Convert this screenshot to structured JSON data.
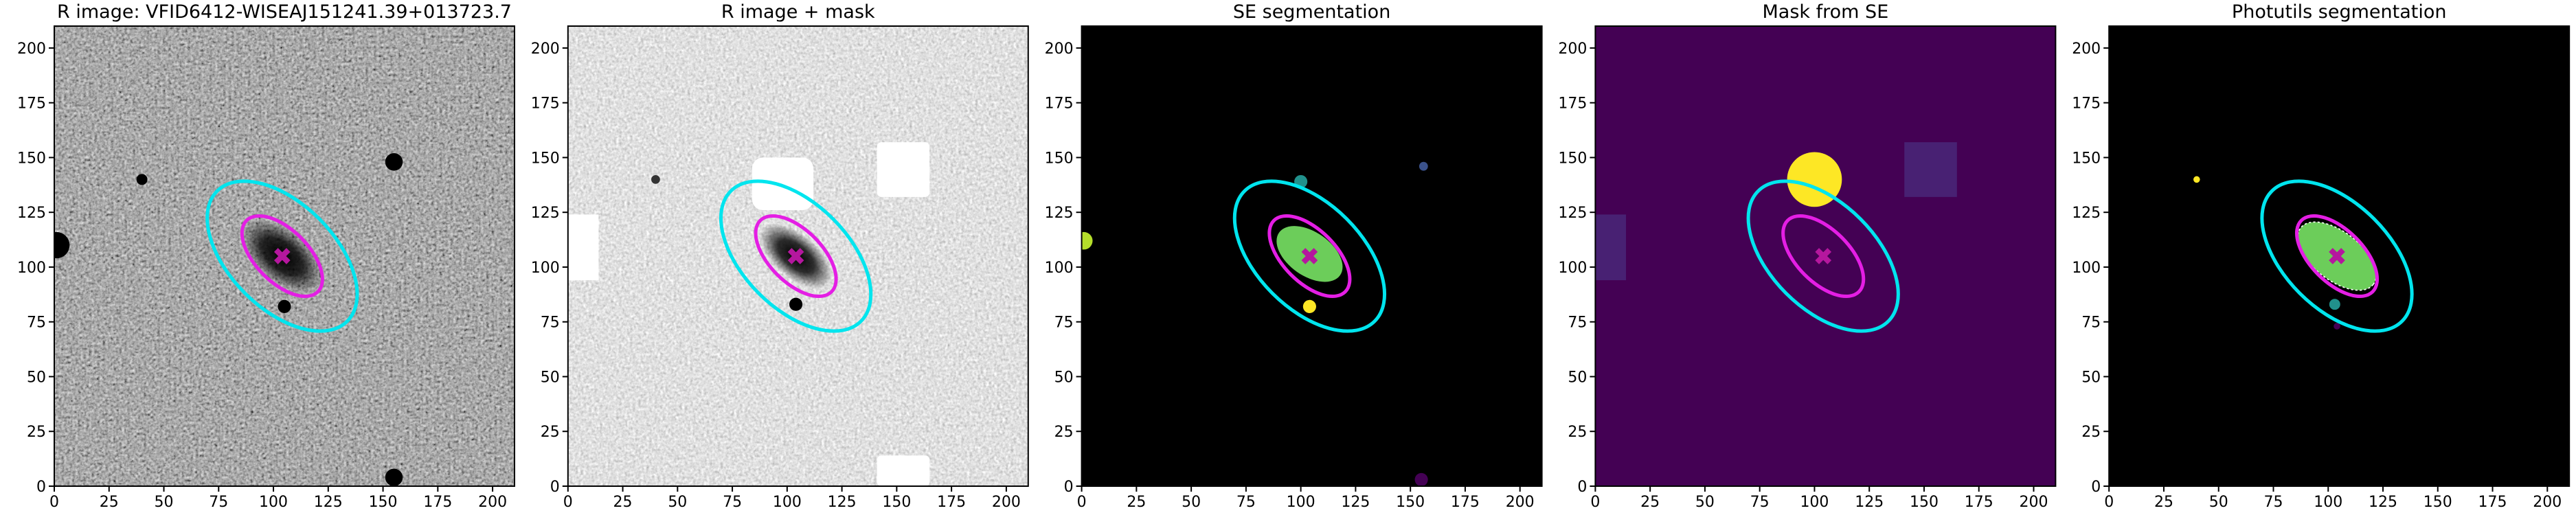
{
  "chart_data": [
    {
      "type": "image",
      "title": "R image: VFID6412-WISEAJ151241.39+013723.7",
      "xlim": [
        0,
        210
      ],
      "ylim": [
        0,
        210
      ],
      "xticks": [
        0,
        25,
        50,
        75,
        100,
        125,
        150,
        175,
        200
      ],
      "yticks": [
        0,
        25,
        50,
        75,
        100,
        125,
        150,
        175,
        200
      ],
      "ellipses": [
        {
          "color": "#00e5ee",
          "x": 104,
          "y": 105,
          "width": 84,
          "height": 48,
          "angle": -45
        },
        {
          "color": "#e41ee4",
          "x": 104,
          "y": 105,
          "width": 46,
          "height": 24,
          "angle": -45
        }
      ],
      "marker": {
        "color": "#b5179e",
        "x": 104,
        "y": 105
      }
    },
    {
      "type": "image",
      "title": "R image + mask",
      "xlim": [
        0,
        210
      ],
      "ylim": [
        0,
        210
      ],
      "xticks": [
        0,
        25,
        50,
        75,
        100,
        125,
        150,
        175,
        200
      ],
      "yticks": [
        0,
        25,
        50,
        75,
        100,
        125,
        150,
        175,
        200
      ],
      "ellipses": [
        {
          "color": "#00e5ee",
          "x": 104,
          "y": 105,
          "width": 84,
          "height": 48,
          "angle": -45
        },
        {
          "color": "#e41ee4",
          "x": 104,
          "y": 105,
          "width": 46,
          "height": 24,
          "angle": -45
        }
      ],
      "marker": {
        "color": "#b5179e",
        "x": 104,
        "y": 105
      }
    },
    {
      "type": "image",
      "title": "SE segmentation",
      "xlim": [
        0,
        210
      ],
      "ylim": [
        0,
        210
      ],
      "xticks": [
        0,
        25,
        50,
        75,
        100,
        125,
        150,
        175,
        200
      ],
      "yticks": [
        0,
        25,
        50,
        75,
        100,
        125,
        150,
        175,
        200
      ],
      "ellipses": [
        {
          "color": "#00e5ee",
          "x": 104,
          "y": 105,
          "width": 84,
          "height": 48,
          "angle": -45
        },
        {
          "color": "#e41ee4",
          "x": 104,
          "y": 105,
          "width": 46,
          "height": 24,
          "angle": -45
        }
      ],
      "marker": {
        "color": "#b5179e",
        "x": 104,
        "y": 105
      }
    },
    {
      "type": "image",
      "title": "Mask from SE",
      "xlim": [
        0,
        210
      ],
      "ylim": [
        0,
        210
      ],
      "xticks": [
        0,
        25,
        50,
        75,
        100,
        125,
        150,
        175,
        200
      ],
      "yticks": [
        0,
        25,
        50,
        75,
        100,
        125,
        150,
        175,
        200
      ],
      "ellipses": [
        {
          "color": "#00e5ee",
          "x": 104,
          "y": 105,
          "width": 84,
          "height": 48,
          "angle": -45
        },
        {
          "color": "#e41ee4",
          "x": 104,
          "y": 105,
          "width": 46,
          "height": 24,
          "angle": -45
        }
      ],
      "marker": {
        "color": "#b5179e",
        "x": 104,
        "y": 105
      }
    },
    {
      "type": "image",
      "title": "Photutils segmentation",
      "xlim": [
        0,
        210
      ],
      "ylim": [
        0,
        210
      ],
      "xticks": [
        0,
        25,
        50,
        75,
        100,
        125,
        150,
        175,
        200
      ],
      "yticks": [
        0,
        25,
        50,
        75,
        100,
        125,
        150,
        175,
        200
      ],
      "ellipses": [
        {
          "color": "#00e5ee",
          "x": 104,
          "y": 105,
          "width": 84,
          "height": 48,
          "angle": -45
        },
        {
          "color": "#e41ee4",
          "x": 104,
          "y": 105,
          "width": 46,
          "height": 24,
          "angle": -45
        }
      ],
      "marker": {
        "color": "#b5179e",
        "x": 104,
        "y": 105
      }
    }
  ]
}
